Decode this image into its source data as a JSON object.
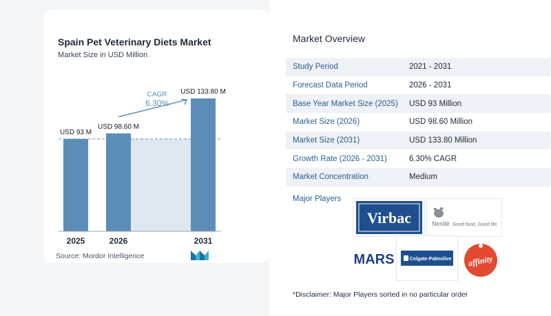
{
  "chart_data": {
    "type": "bar",
    "title": "Spain Pet Veterinary Diets Market",
    "subtitle": "Market Size in USD Million",
    "categories": [
      "2025",
      "2026",
      "2031"
    ],
    "values": [
      93,
      98.6,
      133.8
    ],
    "value_labels": [
      "USD 93 M",
      "USD 98.60 M",
      "USD 133.80 M"
    ],
    "cagr_label": "CAGR",
    "cagr_value": "6.30%",
    "reference_line_at": 93,
    "ylim": [
      0,
      133.8
    ],
    "colors": {
      "bar": "#5b8db8",
      "shade": "#dde7f0",
      "arrow": "#5b8db8"
    }
  },
  "source": "Source:  Mordor Intelligence",
  "overview": {
    "title": "Market Overview",
    "rows": [
      {
        "label": "Study Period",
        "value": "2021 - 2031"
      },
      {
        "label": "Forecast Data Period",
        "value": "2026 - 2031"
      },
      {
        "label": "Base Year Market Size (2025)",
        "value": "USD 93 Million"
      },
      {
        "label": "Market Size (2026)",
        "value": "USD 98.60 Million"
      },
      {
        "label": "Market Size (2031)",
        "value": "USD 133.80 Million"
      },
      {
        "label": "Growth Rate (2026 - 2031)",
        "value": "6.30% CAGR"
      },
      {
        "label": "Market Concentration",
        "value": "Medium"
      }
    ]
  },
  "players": {
    "label": "Major Players",
    "virbac": "Virbac",
    "nestle": "Nestlé",
    "nestle_tagline": "Good food, Good life",
    "mars": "MARS",
    "colgate": "Colgate-Palmolive",
    "affinity": "affinity"
  },
  "disclaimer": "*Disclaimer: Major Players sorted in no particular order"
}
